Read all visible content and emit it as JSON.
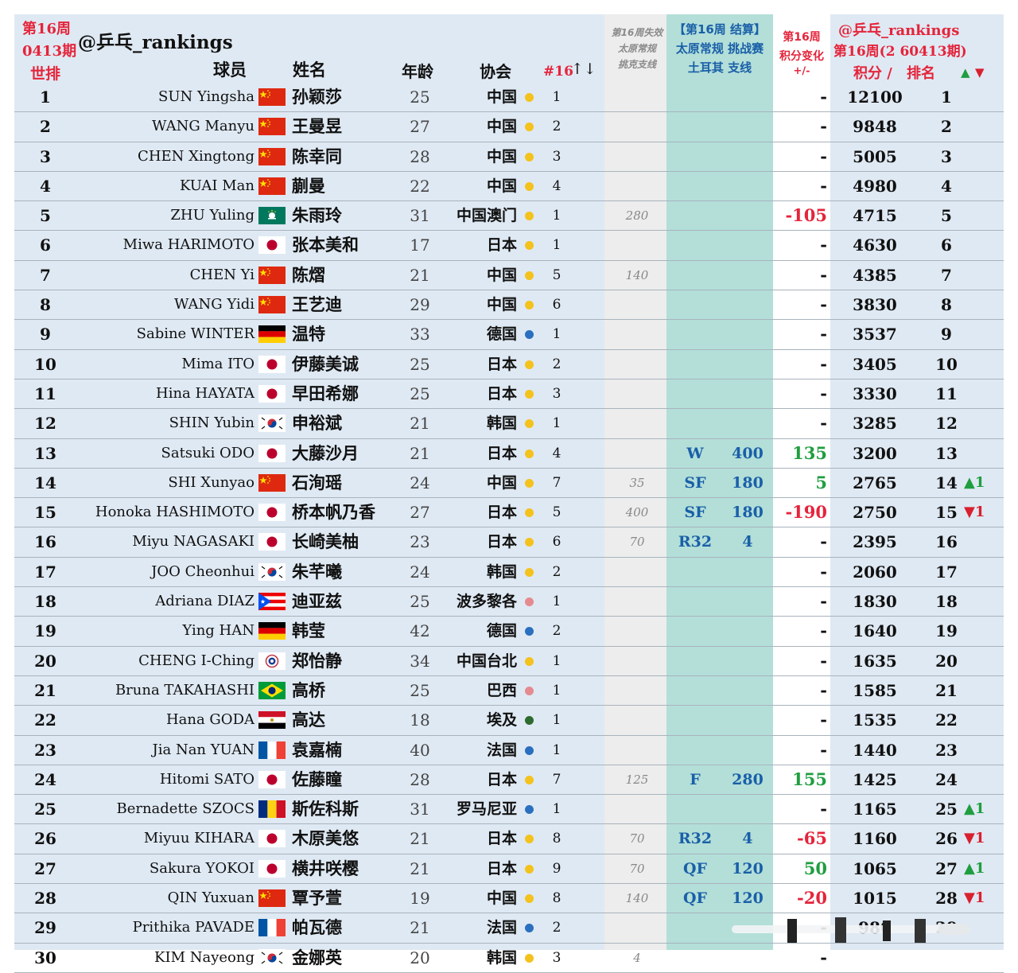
{
  "header": {
    "week_line1": "第16周",
    "week_line2": "0413期",
    "world_rank": "世排",
    "handle": "@乒乓_rankings",
    "col_player": "球员",
    "col_name": "姓名",
    "col_age": "年龄",
    "col_assoc": "协会",
    "col_assoc_rank": "#16",
    "col_assoc_rank_sort": "↑↓",
    "lost_line1": "第16周失效",
    "lost_line2": "太原常规",
    "lost_line3": "挑克支线",
    "result_line1": "【第16周 结算】",
    "result_line2": "太原常规 挑战赛",
    "result_line3": "土耳其 支线",
    "change_line1": "第16周",
    "change_line2": "积分变化",
    "change_line3": "+/-",
    "handle2": "@乒乓_rankings",
    "period": "第16周(2 60413期)",
    "col_points": "积分 /",
    "col_rank": "排名",
    "up_mark": "▲",
    "down_mark": "▼"
  },
  "colors": {
    "base": "#dfe9f3",
    "lost_col": "#ededed",
    "result_col": "#b3dfd8",
    "change_col": "#ffffff",
    "accent_red": "#e5243b",
    "accent_blue": "#1a5fa8",
    "green": "#1f9e3f",
    "dot_yellow": "#f4c21c",
    "dot_blue": "#2a6fc0",
    "dot_pink": "#e58a8f",
    "dot_green": "#2e6b2e"
  },
  "rows": [
    {
      "rank": "1",
      "en": "SUN Yingsha",
      "flag": "cn",
      "cn": "孙颖莎",
      "age": "25",
      "assoc": "中国",
      "dot": "yellow",
      "arank": "1",
      "lost": "",
      "res": "",
      "earn": "",
      "chg": "-",
      "chg_type": "neu",
      "pts": "12100",
      "nrk": "1",
      "mv": "",
      "mv_type": ""
    },
    {
      "rank": "2",
      "en": "WANG Manyu",
      "flag": "cn",
      "cn": "王曼昱",
      "age": "27",
      "assoc": "中国",
      "dot": "yellow",
      "arank": "2",
      "lost": "",
      "res": "",
      "earn": "",
      "chg": "-",
      "chg_type": "neu",
      "pts": "9848",
      "nrk": "2",
      "mv": "",
      "mv_type": ""
    },
    {
      "rank": "3",
      "en": "CHEN Xingtong",
      "flag": "cn",
      "cn": "陈幸同",
      "age": "28",
      "assoc": "中国",
      "dot": "yellow",
      "arank": "3",
      "lost": "",
      "res": "",
      "earn": "",
      "chg": "-",
      "chg_type": "neu",
      "pts": "5005",
      "nrk": "3",
      "mv": "",
      "mv_type": ""
    },
    {
      "rank": "4",
      "en": "KUAI Man",
      "flag": "cn",
      "cn": "蒯曼",
      "age": "22",
      "assoc": "中国",
      "dot": "yellow",
      "arank": "4",
      "lost": "",
      "res": "",
      "earn": "",
      "chg": "-",
      "chg_type": "neu",
      "pts": "4980",
      "nrk": "4",
      "mv": "",
      "mv_type": ""
    },
    {
      "rank": "5",
      "en": "ZHU Yuling",
      "flag": "mo",
      "cn": "朱雨玲",
      "age": "31",
      "assoc": "中国澳门",
      "dot": "yellow",
      "arank": "1",
      "lost": "280",
      "res": "",
      "earn": "",
      "chg": "-105",
      "chg_type": "neg",
      "pts": "4715",
      "nrk": "5",
      "mv": "",
      "mv_type": ""
    },
    {
      "rank": "6",
      "en": "Miwa HARIMOTO",
      "flag": "jp",
      "cn": "张本美和",
      "age": "17",
      "assoc": "日本",
      "dot": "yellow",
      "arank": "1",
      "lost": "",
      "res": "",
      "earn": "",
      "chg": "-",
      "chg_type": "neu",
      "pts": "4630",
      "nrk": "6",
      "mv": "",
      "mv_type": ""
    },
    {
      "rank": "7",
      "en": "CHEN Yi",
      "flag": "cn",
      "cn": "陈熠",
      "age": "21",
      "assoc": "中国",
      "dot": "yellow",
      "arank": "5",
      "lost": "140",
      "res": "",
      "earn": "",
      "chg": "-",
      "chg_type": "neu",
      "pts": "4385",
      "nrk": "7",
      "mv": "",
      "mv_type": ""
    },
    {
      "rank": "8",
      "en": "WANG Yidi",
      "flag": "cn",
      "cn": "王艺迪",
      "age": "29",
      "assoc": "中国",
      "dot": "yellow",
      "arank": "6",
      "lost": "",
      "res": "",
      "earn": "",
      "chg": "-",
      "chg_type": "neu",
      "pts": "3830",
      "nrk": "8",
      "mv": "",
      "mv_type": ""
    },
    {
      "rank": "9",
      "en": "Sabine WINTER",
      "flag": "de",
      "cn": "温特",
      "age": "33",
      "assoc": "德国",
      "dot": "blue",
      "arank": "1",
      "lost": "",
      "res": "",
      "earn": "",
      "chg": "-",
      "chg_type": "neu",
      "pts": "3537",
      "nrk": "9",
      "mv": "",
      "mv_type": ""
    },
    {
      "rank": "10",
      "en": "Mima ITO",
      "flag": "jp",
      "cn": "伊藤美诚",
      "age": "25",
      "assoc": "日本",
      "dot": "yellow",
      "arank": "2",
      "lost": "",
      "res": "",
      "earn": "",
      "chg": "-",
      "chg_type": "neu",
      "pts": "3405",
      "nrk": "10",
      "mv": "",
      "mv_type": ""
    },
    {
      "rank": "11",
      "en": "Hina HAYATA",
      "flag": "jp",
      "cn": "早田希娜",
      "age": "25",
      "assoc": "日本",
      "dot": "yellow",
      "arank": "3",
      "lost": "",
      "res": "",
      "earn": "",
      "chg": "-",
      "chg_type": "neu",
      "pts": "3330",
      "nrk": "11",
      "mv": "",
      "mv_type": ""
    },
    {
      "rank": "12",
      "en": "SHIN Yubin",
      "flag": "kr",
      "cn": "申裕斌",
      "age": "21",
      "assoc": "韩国",
      "dot": "yellow",
      "arank": "1",
      "lost": "",
      "res": "",
      "earn": "",
      "chg": "-",
      "chg_type": "neu",
      "pts": "3285",
      "nrk": "12",
      "mv": "",
      "mv_type": ""
    },
    {
      "rank": "13",
      "en": "Satsuki ODO",
      "flag": "jp",
      "cn": "大藤沙月",
      "age": "21",
      "assoc": "日本",
      "dot": "yellow",
      "arank": "4",
      "lost": "",
      "res": "W",
      "earn": "400",
      "chg": "135",
      "chg_type": "pos",
      "pts": "3200",
      "nrk": "13",
      "mv": "",
      "mv_type": ""
    },
    {
      "rank": "14",
      "en": "SHI Xunyao",
      "flag": "cn",
      "cn": "石洵瑶",
      "age": "24",
      "assoc": "中国",
      "dot": "yellow",
      "arank": "7",
      "lost": "35",
      "res": "SF",
      "earn": "180",
      "chg": "5",
      "chg_type": "pos",
      "pts": "2765",
      "nrk": "14",
      "mv": "▲1",
      "mv_type": "up"
    },
    {
      "rank": "15",
      "en": "Honoka HASHIMOTO",
      "flag": "jp",
      "cn": "桥本帆乃香",
      "age": "27",
      "assoc": "日本",
      "dot": "yellow",
      "arank": "5",
      "lost": "400",
      "res": "SF",
      "earn": "180",
      "chg": "-190",
      "chg_type": "neg",
      "pts": "2750",
      "nrk": "15",
      "mv": "▼1",
      "mv_type": "dn"
    },
    {
      "rank": "16",
      "en": "Miyu NAGASAKI",
      "flag": "jp",
      "cn": "长崎美柚",
      "age": "23",
      "assoc": "日本",
      "dot": "yellow",
      "arank": "6",
      "lost": "70",
      "res": "R32",
      "earn": "4",
      "chg": "-",
      "chg_type": "neu",
      "pts": "2395",
      "nrk": "16",
      "mv": "",
      "mv_type": ""
    },
    {
      "rank": "17",
      "en": "JOO Cheonhui",
      "flag": "kr",
      "cn": "朱芊曦",
      "age": "24",
      "assoc": "韩国",
      "dot": "yellow",
      "arank": "2",
      "lost": "",
      "res": "",
      "earn": "",
      "chg": "-",
      "chg_type": "neu",
      "pts": "2060",
      "nrk": "17",
      "mv": "",
      "mv_type": ""
    },
    {
      "rank": "18",
      "en": "Adriana DIAZ",
      "flag": "pr",
      "cn": "迪亚兹",
      "age": "25",
      "assoc": "波多黎各",
      "dot": "pink",
      "arank": "1",
      "lost": "",
      "res": "",
      "earn": "",
      "chg": "-",
      "chg_type": "neu",
      "pts": "1830",
      "nrk": "18",
      "mv": "",
      "mv_type": ""
    },
    {
      "rank": "19",
      "en": "Ying HAN",
      "flag": "de",
      "cn": "韩莹",
      "age": "42",
      "assoc": "德国",
      "dot": "blue",
      "arank": "2",
      "lost": "",
      "res": "",
      "earn": "",
      "chg": "-",
      "chg_type": "neu",
      "pts": "1640",
      "nrk": "19",
      "mv": "",
      "mv_type": ""
    },
    {
      "rank": "20",
      "en": "CHENG I-Ching",
      "flag": "tpe",
      "cn": "郑怡静",
      "age": "34",
      "assoc": "中国台北",
      "dot": "yellow",
      "arank": "1",
      "lost": "",
      "res": "",
      "earn": "",
      "chg": "-",
      "chg_type": "neu",
      "pts": "1635",
      "nrk": "20",
      "mv": "",
      "mv_type": ""
    },
    {
      "rank": "21",
      "en": "Bruna TAKAHASHI",
      "flag": "br",
      "cn": "高桥",
      "age": "25",
      "assoc": "巴西",
      "dot": "pink",
      "arank": "1",
      "lost": "",
      "res": "",
      "earn": "",
      "chg": "-",
      "chg_type": "neu",
      "pts": "1585",
      "nrk": "21",
      "mv": "",
      "mv_type": ""
    },
    {
      "rank": "22",
      "en": "Hana GODA",
      "flag": "eg",
      "cn": "高达",
      "age": "18",
      "assoc": "埃及",
      "dot": "green",
      "arank": "1",
      "lost": "",
      "res": "",
      "earn": "",
      "chg": "-",
      "chg_type": "neu",
      "pts": "1535",
      "nrk": "22",
      "mv": "",
      "mv_type": ""
    },
    {
      "rank": "23",
      "en": "Jia Nan YUAN",
      "flag": "fr",
      "cn": "袁嘉楠",
      "age": "40",
      "assoc": "法国",
      "dot": "blue",
      "arank": "1",
      "lost": "",
      "res": "",
      "earn": "",
      "chg": "-",
      "chg_type": "neu",
      "pts": "1440",
      "nrk": "23",
      "mv": "",
      "mv_type": ""
    },
    {
      "rank": "24",
      "en": "Hitomi SATO",
      "flag": "jp",
      "cn": "佐藤瞳",
      "age": "28",
      "assoc": "日本",
      "dot": "yellow",
      "arank": "7",
      "lost": "125",
      "res": "F",
      "earn": "280",
      "chg": "155",
      "chg_type": "pos",
      "pts": "1425",
      "nrk": "24",
      "mv": "",
      "mv_type": ""
    },
    {
      "rank": "25",
      "en": "Bernadette SZOCS",
      "flag": "ro",
      "cn": "斯佐科斯",
      "age": "31",
      "assoc": "罗马尼亚",
      "dot": "blue",
      "arank": "1",
      "lost": "",
      "res": "",
      "earn": "",
      "chg": "-",
      "chg_type": "neu",
      "pts": "1165",
      "nrk": "25",
      "mv": "▲1",
      "mv_type": "up"
    },
    {
      "rank": "26",
      "en": "Miyuu KIHARA",
      "flag": "jp",
      "cn": "木原美悠",
      "age": "21",
      "assoc": "日本",
      "dot": "yellow",
      "arank": "8",
      "lost": "70",
      "res": "R32",
      "earn": "4",
      "chg": "-65",
      "chg_type": "neg",
      "pts": "1160",
      "nrk": "26",
      "mv": "▼1",
      "mv_type": "dn"
    },
    {
      "rank": "27",
      "en": "Sakura YOKOI",
      "flag": "jp",
      "cn": "横井咲樱",
      "age": "21",
      "assoc": "日本",
      "dot": "yellow",
      "arank": "9",
      "lost": "70",
      "res": "QF",
      "earn": "120",
      "chg": "50",
      "chg_type": "pos",
      "pts": "1065",
      "nrk": "27",
      "mv": "▲1",
      "mv_type": "up"
    },
    {
      "rank": "28",
      "en": "QIN Yuxuan",
      "flag": "cn",
      "cn": "覃予萱",
      "age": "19",
      "assoc": "中国",
      "dot": "yellow",
      "arank": "8",
      "lost": "140",
      "res": "QF",
      "earn": "120",
      "chg": "-20",
      "chg_type": "neg",
      "pts": "1015",
      "nrk": "28",
      "mv": "▼1",
      "mv_type": "dn"
    },
    {
      "rank": "29",
      "en": "Prithika PAVADE",
      "flag": "fr",
      "cn": "帕瓦德",
      "age": "21",
      "assoc": "法国",
      "dot": "blue",
      "arank": "2",
      "lost": "",
      "res": "",
      "earn": "",
      "chg": "-",
      "chg_type": "neu",
      "pts": "980",
      "nrk": "29",
      "mv": "",
      "mv_type": ""
    },
    {
      "rank": "30",
      "en": "KIM Nayeong",
      "flag": "kr",
      "cn": "金娜英",
      "age": "20",
      "assoc": "韩国",
      "dot": "yellow",
      "arank": "3",
      "lost": "4",
      "res": "",
      "earn": "",
      "chg": "-",
      "chg_type": "neu",
      "pts": "",
      "nrk": "",
      "mv": "",
      "mv_type": ""
    }
  ]
}
